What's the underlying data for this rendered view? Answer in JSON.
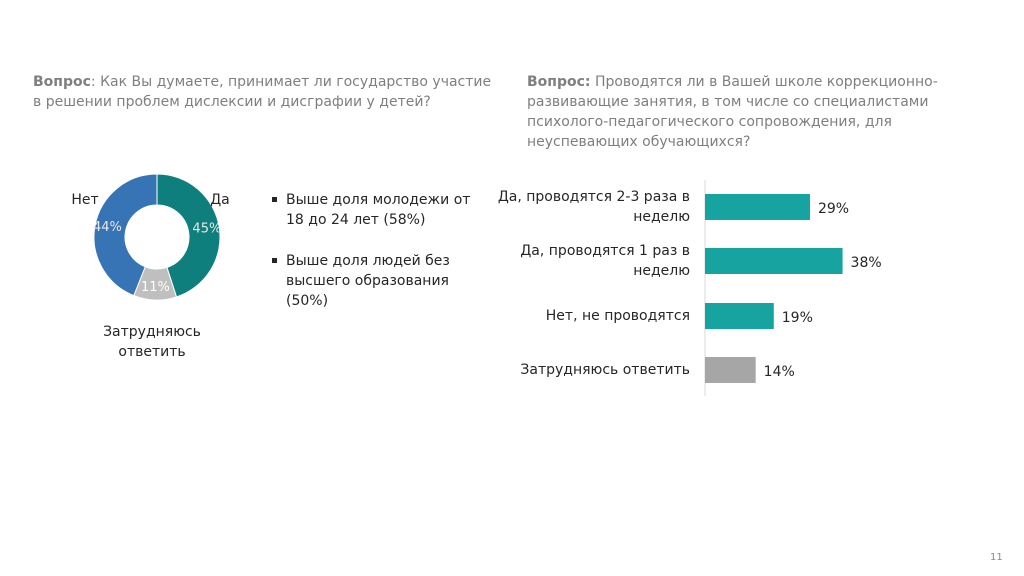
{
  "chart_data": [
    {
      "type": "donut",
      "title_prefix": "Вопрос",
      "title": ": Как Вы думаете, принимает ли государство участие в решении проблем дислексии и дисграфии у детей?",
      "categories": [
        "Да",
        "Затрудняюсь ответить",
        "Нет"
      ],
      "values": [
        45,
        11,
        44
      ],
      "value_labels": [
        "45%",
        "11%",
        "44%"
      ],
      "colors": [
        "#0f7f7e",
        "#bfbfbf",
        "#3674b6"
      ]
    },
    {
      "type": "hbar",
      "title_prefix": "Вопрос:",
      "title": " Проводятся ли в Вашей школе коррекционно-развивающие занятия, в том числе со специалистами психолого-педагогического сопровождения, для неуспевающих обучающихся?",
      "categories": [
        "Да, проводятся 2-3 раза в неделю",
        "Да, проводятся 1 раз в неделю",
        "Нет, не проводятся",
        "Затрудняюсь ответить"
      ],
      "values": [
        29,
        38,
        19,
        14
      ],
      "value_labels": [
        "29%",
        "38%",
        "19%",
        "14%"
      ],
      "colors": [
        "#17a3a0",
        "#17a3a0",
        "#17a3a0",
        "#a6a6a6"
      ],
      "xlim": [
        0,
        100
      ]
    }
  ],
  "notes": [
    "Выше доля молодежи от 18 до 24 лет (58%)",
    "Выше доля людей без высшего образования (50%)"
  ],
  "page_number": "11"
}
